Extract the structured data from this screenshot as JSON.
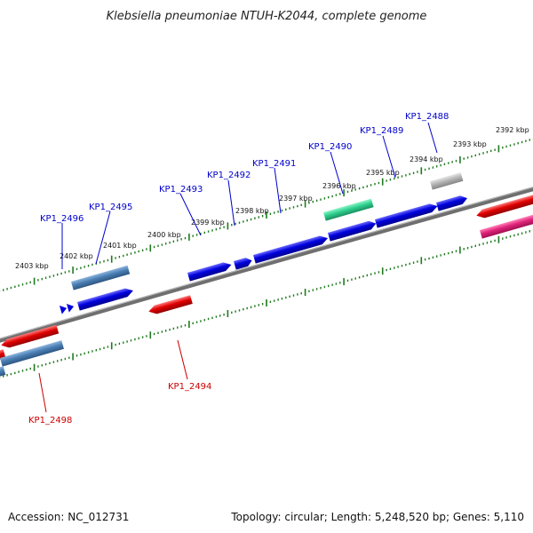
{
  "title": "Klebsiella pneumoniae NTUH-K2044, complete genome",
  "accession": "Accession: NC_012731",
  "topology": "Topology: circular; Length: 5,248,520 bp; Genes: 5,110",
  "colors": {
    "backbone": "#7f7f7f",
    "ticks": "#1f7a1f",
    "gene_plus": "#0000dd",
    "gene_minus": "#dd0000",
    "gene_steel": "#4a7fb5",
    "gene_green": "#2fd08f",
    "gene_gray": "#b5b5b5",
    "gene_pink": "#e0237a",
    "label_plus": "#0000cc",
    "label_minus": "#cc0000"
  },
  "kbp_labels": [
    "2392 kbp",
    "2393 kbp",
    "2394 kbp",
    "2395 kbp",
    "2396 kbp",
    "2397 kbp",
    "2398 kbp",
    "2399 kbp",
    "2400 kbp",
    "2401 kbp",
    "2402 kbp",
    "2403 kbp"
  ],
  "gene_labels": [
    {
      "text": "KP1_2488",
      "strand": "plus"
    },
    {
      "text": "KP1_2489",
      "strand": "plus"
    },
    {
      "text": "KP1_2490",
      "strand": "plus"
    },
    {
      "text": "KP1_2491",
      "strand": "plus"
    },
    {
      "text": "KP1_2492",
      "strand": "plus"
    },
    {
      "text": "KP1_2493",
      "strand": "plus"
    },
    {
      "text": "KP1_2495",
      "strand": "plus"
    },
    {
      "text": "KP1_2496",
      "strand": "plus"
    },
    {
      "text": "KP1_2494",
      "strand": "minus"
    },
    {
      "text": "KP1_2498",
      "strand": "minus"
    }
  ]
}
